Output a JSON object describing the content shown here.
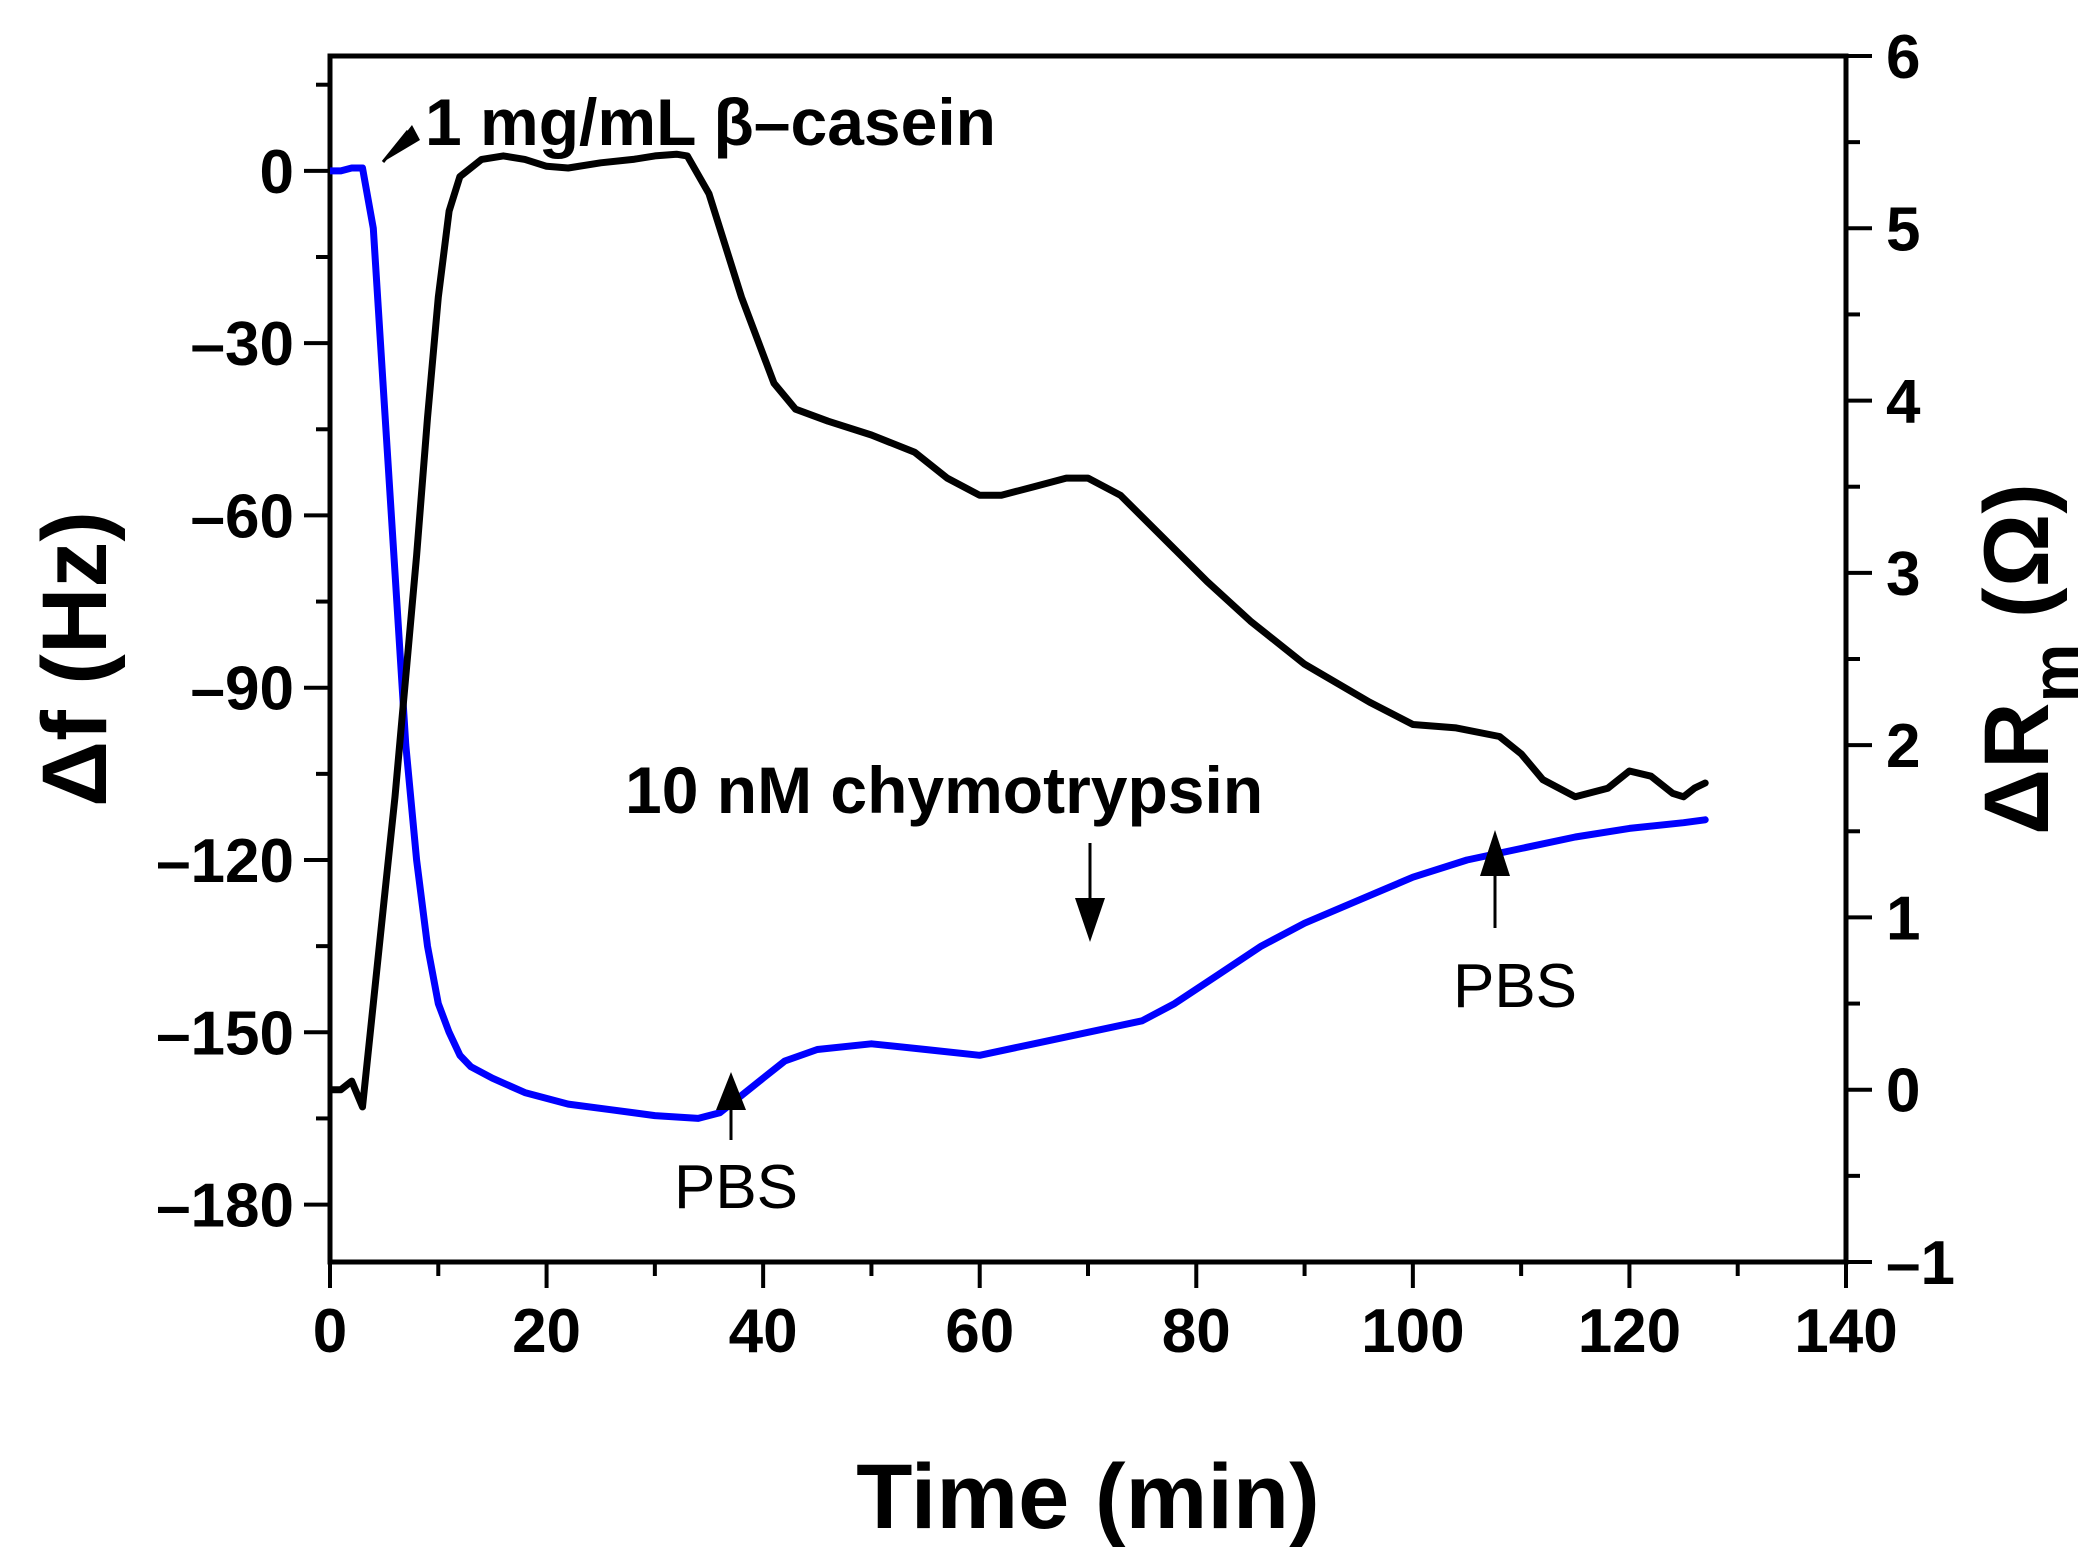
{
  "chart_data": {
    "type": "line",
    "xlabel": "Time (min)",
    "ylabel_left": "Δf (Hz)",
    "ylabel_right_main": "ΔR",
    "ylabel_right_sub": "m",
    "ylabel_right_unit": " (Ω)",
    "xlim": [
      0,
      140
    ],
    "ylim_left": [
      -190,
      20
    ],
    "ylim_right": [
      -1,
      6
    ],
    "x_ticks": [
      0,
      20,
      40,
      60,
      80,
      100,
      120,
      140
    ],
    "x_tick_labels": [
      "0",
      "20",
      "40",
      "60",
      "80",
      "100",
      "120",
      "140"
    ],
    "y_left_ticks": [
      0,
      -30,
      -60,
      -90,
      -120,
      -150,
      -180
    ],
    "y_left_tick_labels": [
      "0",
      "–30",
      "–60",
      "–90",
      "–120",
      "–150",
      "–180"
    ],
    "y_right_ticks": [
      -1,
      0,
      1,
      2,
      3,
      4,
      5,
      6
    ],
    "y_right_tick_labels": [
      "–1",
      "0",
      "1",
      "2",
      "3",
      "4",
      "5",
      "6"
    ],
    "series": [
      {
        "name": "Δf",
        "axis": "left",
        "color": "#0000ff",
        "x": [
          0,
          1,
          2,
          3,
          4,
          5,
          6,
          7,
          8,
          9,
          10,
          11,
          12,
          13,
          15,
          18,
          22,
          26,
          30,
          34,
          36,
          38,
          40,
          42,
          45,
          50,
          55,
          60,
          65,
          70,
          75,
          78,
          82,
          86,
          90,
          95,
          100,
          105,
          110,
          115,
          120,
          125,
          127
        ],
        "y": [
          0,
          0,
          0.5,
          0.5,
          -10,
          -40,
          -70,
          -100,
          -120,
          -135,
          -145,
          -150,
          -154,
          -156,
          -158,
          -160.5,
          -162.5,
          -163.5,
          -164.5,
          -165,
          -164,
          -161,
          -158,
          -155,
          -153,
          -152,
          -153,
          -154,
          -152,
          -150,
          -148,
          -145,
          -140,
          -135,
          -131,
          -127,
          -123,
          -120,
          -118,
          -116,
          -114.5,
          -113.5,
          -113
        ]
      },
      {
        "name": "ΔRm",
        "axis": "right",
        "color": "#000000",
        "x": [
          0,
          1,
          2,
          3,
          4,
          5,
          6,
          7,
          8,
          9,
          10,
          11,
          12,
          14,
          16,
          18,
          20,
          22,
          25,
          28,
          30,
          32,
          33,
          35,
          38,
          41,
          43,
          46,
          50,
          54,
          57,
          60,
          62,
          65,
          68,
          70,
          73,
          77,
          81,
          85,
          90,
          96,
          100,
          104,
          108,
          110,
          112,
          115,
          118,
          120,
          122,
          124,
          125,
          126,
          127
        ],
        "y": [
          0,
          0,
          0.05,
          -0.1,
          0.5,
          1.1,
          1.7,
          2.4,
          3.1,
          3.9,
          4.6,
          5.1,
          5.3,
          5.4,
          5.42,
          5.4,
          5.36,
          5.35,
          5.38,
          5.4,
          5.42,
          5.43,
          5.42,
          5.2,
          4.6,
          4.1,
          3.95,
          3.88,
          3.8,
          3.7,
          3.55,
          3.45,
          3.45,
          3.5,
          3.55,
          3.55,
          3.45,
          3.2,
          2.95,
          2.72,
          2.47,
          2.25,
          2.12,
          2.1,
          2.05,
          1.95,
          1.8,
          1.7,
          1.75,
          1.85,
          1.82,
          1.72,
          1.7,
          1.75,
          1.78
        ]
      }
    ],
    "annotations": {
      "casein": "1 mg/mL β–casein",
      "chymotrypsin": "10 nM chymotrypsin",
      "pbs_1": "PBS",
      "pbs_2": "PBS"
    }
  }
}
